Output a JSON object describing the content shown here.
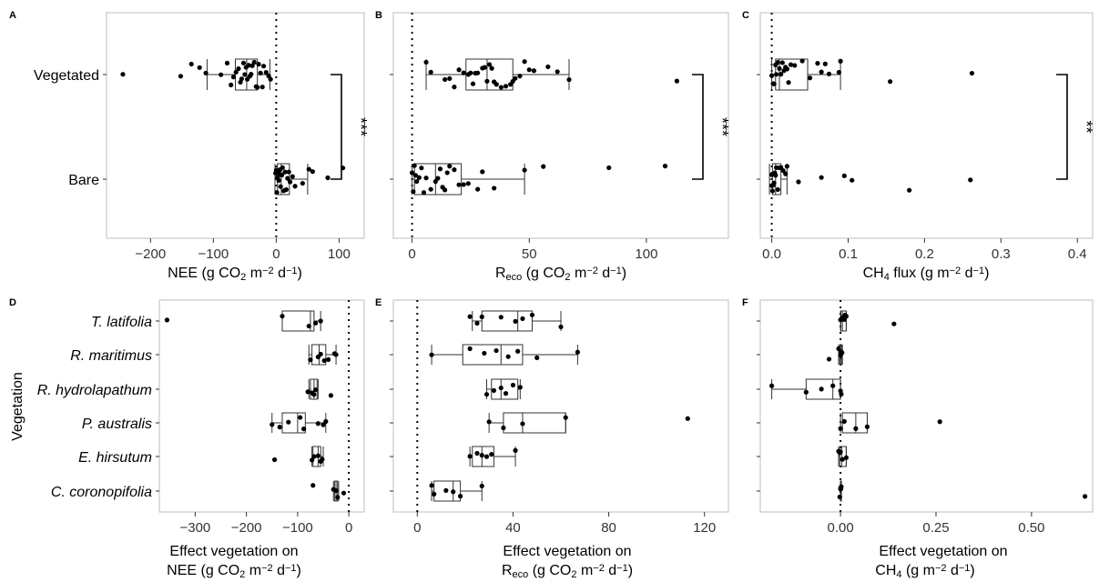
{
  "y_axis_title": "Vegetation",
  "chart_data": [
    {
      "panel": "A",
      "type": "box",
      "orientation": "horizontal",
      "xlabel": "NEE (g CO₂ m⁻² d⁻¹)",
      "xticks": [
        -200,
        -100,
        0,
        100
      ],
      "xlim": [
        -270,
        140
      ],
      "reference_line": 0,
      "categories": [
        "Vegetated",
        "Bare"
      ],
      "boxes": [
        {
          "min": -110,
          "q1": -65,
          "median": -47,
          "q3": -30,
          "max": -10,
          "points": [
            -244,
            -152,
            -135,
            -122,
            -112,
            -88,
            -78,
            -72,
            -68,
            -64,
            -60,
            -57,
            -55,
            -52,
            -50,
            -48,
            -46,
            -44,
            -42,
            -40,
            -38,
            -35,
            -32,
            -30,
            -28,
            -25,
            -22,
            -20,
            -16,
            -12,
            -9
          ]
        },
        {
          "min": -2,
          "q1": 2,
          "median": 8,
          "q3": 21,
          "max": 50,
          "points": [
            -1,
            0,
            1,
            2,
            3,
            4,
            5,
            6,
            7,
            8,
            9,
            10,
            12,
            14,
            16,
            18,
            20,
            22,
            26,
            30,
            42,
            52,
            58,
            82,
            106
          ]
        }
      ],
      "significance": "***"
    },
    {
      "panel": "B",
      "type": "box",
      "orientation": "horizontal",
      "xlabel": "R_eco (g CO₂ m⁻² d⁻¹)",
      "xticks": [
        0,
        50,
        100
      ],
      "xlim": [
        -8,
        135
      ],
      "reference_line": 0,
      "categories": [
        "Vegetated",
        "Bare"
      ],
      "boxes": [
        {
          "min": 6,
          "q1": 23,
          "median": 32,
          "q3": 43,
          "max": 67,
          "points": [
            6,
            8,
            14,
            16,
            18,
            20,
            22,
            24,
            25,
            26,
            27,
            28,
            30,
            31,
            32,
            33,
            34,
            35,
            36,
            38,
            40,
            42,
            43,
            44,
            46,
            48,
            50,
            52,
            58,
            62,
            67,
            113
          ]
        },
        {
          "min": 0,
          "q1": 1,
          "median": 10,
          "q3": 21,
          "max": 48,
          "points": [
            0,
            0.5,
            1,
            1.5,
            2,
            3,
            4,
            5,
            6,
            8,
            10,
            11,
            12,
            13,
            14,
            15,
            16,
            18,
            20,
            22,
            24,
            28,
            30,
            35,
            48,
            56,
            84,
            108
          ]
        }
      ],
      "significance": "***"
    },
    {
      "panel": "C",
      "type": "box",
      "orientation": "horizontal",
      "xlabel": "CH₄ flux (g m⁻² d⁻¹)",
      "xticks": [
        0.0,
        0.1,
        0.2,
        0.3,
        0.4
      ],
      "xlim": [
        -0.015,
        0.42
      ],
      "reference_line": 0,
      "categories": [
        "Vegetated",
        "Bare"
      ],
      "boxes": [
        {
          "min": 0.0,
          "q1": 0.005,
          "median": 0.01,
          "q3": 0.047,
          "max": 0.09,
          "points": [
            0.0,
            0.002,
            0.003,
            0.005,
            0.006,
            0.008,
            0.01,
            0.012,
            0.014,
            0.016,
            0.018,
            0.02,
            0.022,
            0.025,
            0.03,
            0.04,
            0.05,
            0.06,
            0.065,
            0.07,
            0.075,
            0.088,
            0.09,
            0.155,
            0.262
          ]
        },
        {
          "min": -0.003,
          "q1": 0.001,
          "median": 0.005,
          "q3": 0.012,
          "max": 0.02,
          "points": [
            0.0,
            0.0,
            0.001,
            0.002,
            0.003,
            0.004,
            0.005,
            0.006,
            0.008,
            0.01,
            0.012,
            0.015,
            0.018,
            0.02,
            0.035,
            0.065,
            0.095,
            0.105,
            0.18,
            0.26
          ]
        }
      ],
      "significance": "**"
    },
    {
      "panel": "D",
      "type": "box",
      "orientation": "horizontal",
      "xlabel": "Effect vegetation on NEE (g CO₂ m⁻² d⁻¹)",
      "xticks": [
        -300,
        -200,
        -100,
        0
      ],
      "xlim": [
        -370,
        30
      ],
      "reference_line": 0,
      "categories": [
        "T. latifolia",
        "R. maritimus",
        "R. hydrolapathum",
        "P. australis",
        "E. hirsutum",
        "C. coronopifolia"
      ],
      "boxes": [
        {
          "min": -130,
          "q1": -130,
          "median": -75,
          "q3": -68,
          "max": -55,
          "points": [
            -355,
            -130,
            -78,
            -65,
            -55
          ]
        },
        {
          "min": -78,
          "q1": -72,
          "median": -58,
          "q3": -45,
          "max": -25,
          "points": [
            -75,
            -60,
            -55,
            -48,
            -40,
            -28,
            -25
          ]
        },
        {
          "min": -78,
          "q1": -75,
          "median": -68,
          "q3": -62,
          "max": -60,
          "points": [
            -80,
            -72,
            -68,
            -65,
            -35
          ]
        },
        {
          "min": -150,
          "q1": -130,
          "median": -100,
          "q3": -85,
          "max": -45,
          "points": [
            -150,
            -135,
            -118,
            -95,
            -88,
            -60,
            -50,
            -45
          ]
        },
        {
          "min": -72,
          "q1": -70,
          "median": -60,
          "q3": -55,
          "max": -50,
          "points": [
            -145,
            -72,
            -68,
            -60,
            -55,
            -52
          ]
        },
        {
          "min": -30,
          "q1": -28,
          "median": -25,
          "q3": -22,
          "max": -20,
          "points": [
            -70,
            -30,
            -25,
            -22,
            -10
          ]
        }
      ]
    },
    {
      "panel": "E",
      "type": "box",
      "orientation": "horizontal",
      "xlabel": "Effect vegetation on R_eco (g CO₂ m⁻² d⁻¹)",
      "xticks": [
        0,
        40,
        80,
        120
      ],
      "xlim": [
        -10,
        130
      ],
      "reference_line": 0,
      "categories": [
        "T. latifolia",
        "R. maritimus",
        "R. hydrolapathum",
        "P. australis",
        "E. hirsutum",
        "C. coronopifolia"
      ],
      "boxes": [
        {
          "min": 23,
          "q1": 27,
          "median": 42,
          "q3": 48,
          "max": 60,
          "points": [
            22,
            25,
            27,
            35,
            41,
            44,
            48,
            60
          ]
        },
        {
          "min": 6,
          "q1": 19,
          "median": 35,
          "q3": 44,
          "max": 67,
          "points": [
            6,
            22,
            28,
            33,
            38,
            42,
            50,
            67
          ]
        },
        {
          "min": 29,
          "q1": 31,
          "median": 35,
          "q3": 42,
          "max": 43,
          "points": [
            29,
            32,
            35,
            37,
            40,
            43
          ]
        },
        {
          "min": 30,
          "q1": 36,
          "median": 44,
          "q3": 62,
          "max": 62,
          "points": [
            30,
            36,
            44,
            62,
            113
          ]
        },
        {
          "min": 22,
          "q1": 23,
          "median": 27,
          "q3": 32,
          "max": 41,
          "points": [
            22,
            25,
            27,
            29,
            31,
            41
          ]
        },
        {
          "min": 6,
          "q1": 7,
          "median": 15,
          "q3": 18,
          "max": 27,
          "points": [
            6,
            7,
            12,
            15,
            18,
            27
          ]
        }
      ]
    },
    {
      "panel": "F",
      "type": "box",
      "orientation": "horizontal",
      "xlabel": "Effect vegetation on CH₄ (g m⁻² d⁻¹)",
      "xticks": [
        0.0,
        0.25,
        0.5
      ],
      "xlim": [
        -0.21,
        0.66
      ],
      "reference_line": 0,
      "categories": [
        "T. latifolia",
        "R. maritimus",
        "R. hydrolapathum",
        "P. australis",
        "E. hirsutum",
        "C. coronopifolia"
      ],
      "boxes": [
        {
          "min": 0.0,
          "q1": 0.001,
          "median": 0.005,
          "q3": 0.015,
          "max": 0.015,
          "points": [
            0.0,
            0.005,
            0.01,
            0.012,
            0.015,
            0.14
          ]
        },
        {
          "min": -0.005,
          "q1": -0.002,
          "median": 0.0,
          "q3": 0.003,
          "max": 0.005,
          "points": [
            -0.03,
            -0.005,
            0.0,
            0.002,
            0.004
          ]
        },
        {
          "min": -0.18,
          "q1": -0.09,
          "median": -0.02,
          "q3": 0.0,
          "max": 0.0,
          "points": [
            -0.18,
            -0.09,
            -0.05,
            -0.02,
            0.0,
            0.002
          ]
        },
        {
          "min": 0.0,
          "q1": 0.005,
          "median": 0.04,
          "q3": 0.07,
          "max": 0.07,
          "points": [
            0.0,
            0.01,
            0.04,
            0.07,
            0.26
          ]
        },
        {
          "min": -0.005,
          "q1": -0.002,
          "median": 0.003,
          "q3": 0.015,
          "max": 0.015,
          "points": [
            -0.005,
            -0.002,
            0.0,
            0.005,
            0.015
          ]
        },
        {
          "min": 0.0,
          "q1": 0.0,
          "median": 0.0,
          "q3": 0.002,
          "max": 0.002,
          "points": [
            -0.002,
            0.0,
            0.0,
            0.001,
            0.002,
            0.64
          ]
        }
      ]
    }
  ]
}
